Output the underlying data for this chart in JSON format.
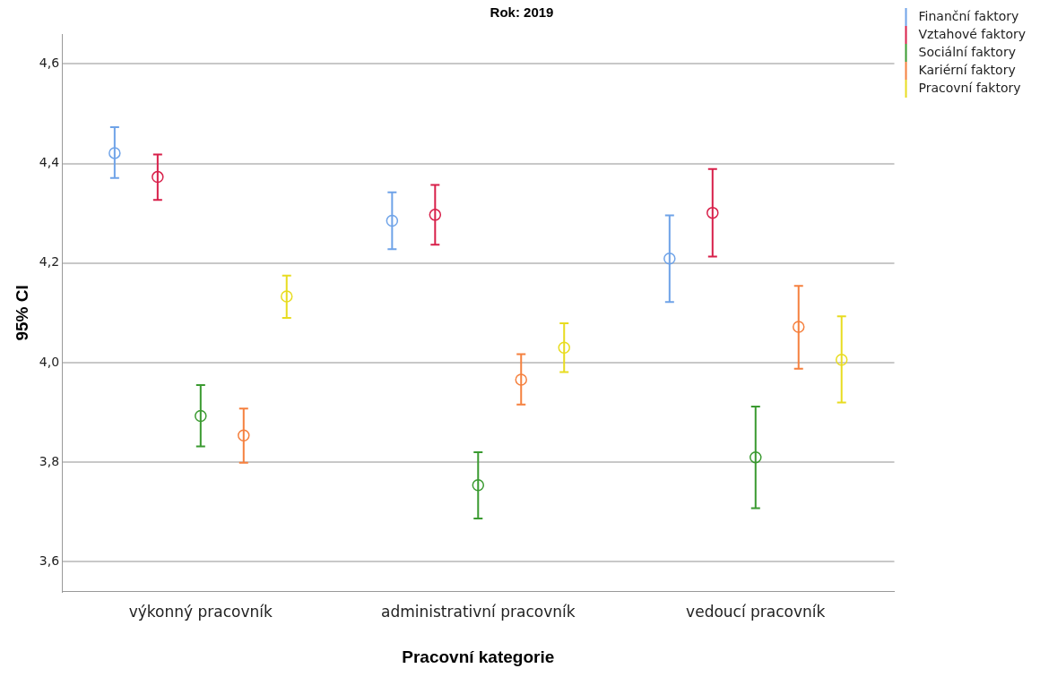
{
  "chart_data": {
    "type": "scatter",
    "title": "Rok: 2019",
    "xlabel": "Pracovní kategorie",
    "ylabel": "95% CI",
    "categories": [
      "výkonný pracovník",
      "administrativní pracovník",
      "vedoucí pracovník"
    ],
    "series": [
      {
        "name": "Finanční faktory",
        "color": "#6fa3e8",
        "values": [
          4.421,
          4.285,
          4.209
        ],
        "errors": [
          [
            4.371,
            4.473
          ],
          [
            4.228,
            4.342
          ],
          [
            4.122,
            4.296
          ]
        ]
      },
      {
        "name": "Vztahové faktory",
        "color": "#d8204a",
        "values": [
          4.373,
          4.297,
          4.301
        ],
        "errors": [
          [
            4.327,
            4.418
          ],
          [
            4.237,
            4.357
          ],
          [
            4.213,
            4.389
          ]
        ]
      },
      {
        "name": "Sociální faktory",
        "color": "#3a9a30",
        "values": [
          3.893,
          3.754,
          3.81
        ],
        "errors": [
          [
            3.832,
            3.955
          ],
          [
            3.687,
            3.82
          ],
          [
            3.708,
            3.912
          ]
        ]
      },
      {
        "name": "Kariérní faktory",
        "color": "#f5803e",
        "values": [
          3.854,
          3.966,
          4.072
        ],
        "errors": [
          [
            3.799,
            3.908
          ],
          [
            3.916,
            4.017
          ],
          [
            3.988,
            4.154
          ]
        ]
      },
      {
        "name": "Pracovní faktory",
        "color": "#e8dc20",
        "values": [
          4.133,
          4.03,
          4.006
        ],
        "errors": [
          [
            4.09,
            4.175
          ],
          [
            3.981,
            4.079
          ],
          [
            3.92,
            4.093
          ]
        ]
      }
    ],
    "ylim": [
      3.54,
      4.66
    ],
    "yticks": [
      {
        "value": 3.6,
        "label": "3,6"
      },
      {
        "value": 3.8,
        "label": "3,8"
      },
      {
        "value": 4.0,
        "label": "4,0"
      },
      {
        "value": 4.2,
        "label": "4,2"
      },
      {
        "value": 4.4,
        "label": "4,4"
      },
      {
        "value": 4.6,
        "label": "4,6"
      }
    ],
    "grid": "y",
    "legend": "top right",
    "marker": "circle"
  }
}
